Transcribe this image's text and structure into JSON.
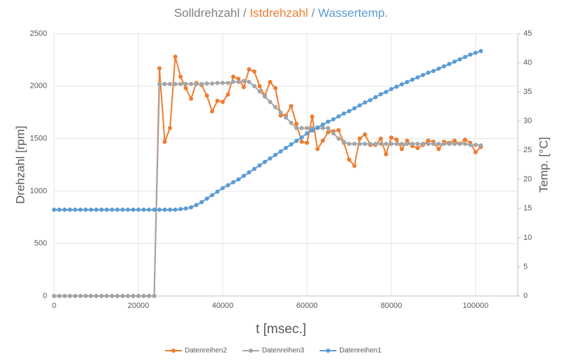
{
  "chart_data": {
    "type": "line",
    "title_parts": [
      {
        "text": "Solldrehzahl",
        "color": "#808080"
      },
      {
        "text": " / ",
        "color": "#808080"
      },
      {
        "text": "Istdrehzahl",
        "color": "#ED7D31"
      },
      {
        "text": " / ",
        "color": "#808080"
      },
      {
        "text": "Wassertemp.",
        "color": "#5B9BD5"
      }
    ],
    "xlabel": "t [msec.]",
    "ylabel": "Drehzahl [rpm]",
    "y2label": "Temp. [°C]",
    "xlim": [
      0,
      110000
    ],
    "xticks": [
      0,
      20000,
      40000,
      60000,
      80000,
      100000
    ],
    "ylim": [
      0,
      2500
    ],
    "yticks": [
      0,
      500,
      1000,
      1500,
      2000,
      2500
    ],
    "y2lim": [
      0,
      45
    ],
    "y2ticks": [
      0,
      5,
      10,
      15,
      20,
      25,
      30,
      35,
      40,
      45
    ],
    "grid": true,
    "legend": "bottom",
    "x": [
      0,
      1250,
      2500,
      3750,
      5000,
      6250,
      7500,
      8750,
      10000,
      11250,
      12500,
      13750,
      15000,
      16250,
      17500,
      18750,
      20000,
      21250,
      22500,
      23750,
      25000,
      26250,
      27500,
      28750,
      30000,
      31250,
      32500,
      33750,
      35000,
      36250,
      37500,
      38750,
      40000,
      41250,
      42500,
      43750,
      45000,
      46250,
      47500,
      48750,
      50000,
      51250,
      52500,
      53750,
      55000,
      56250,
      57500,
      58750,
      60000,
      61250,
      62500,
      63750,
      65000,
      66250,
      67500,
      68750,
      70000,
      71250,
      72500,
      73750,
      75000,
      76250,
      77500,
      78750,
      80000,
      81250,
      82500,
      83750,
      85000,
      86250,
      87500,
      88750,
      90000,
      91250,
      92500,
      93750,
      95000,
      96250,
      97500,
      98750,
      100000,
      101250
    ],
    "series": [
      {
        "name": "Datenreihen2",
        "color": "#ED7D31",
        "values": [
          0,
          0,
          0,
          0,
          0,
          0,
          0,
          0,
          0,
          0,
          0,
          0,
          0,
          0,
          0,
          0,
          0,
          0,
          0,
          0,
          2170,
          1470,
          1600,
          2280,
          2090,
          1980,
          1880,
          2030,
          2010,
          1910,
          1760,
          1860,
          1850,
          1920,
          2090,
          2070,
          1990,
          2160,
          2140,
          2000,
          1910,
          2040,
          1980,
          1720,
          1720,
          1810,
          1640,
          1470,
          1460,
          1710,
          1400,
          1480,
          1560,
          1570,
          1580,
          1460,
          1300,
          1240,
          1500,
          1540,
          1440,
          1440,
          1500,
          1350,
          1510,
          1490,
          1400,
          1480,
          1430,
          1410,
          1440,
          1480,
          1470,
          1400,
          1470,
          1460,
          1480,
          1450,
          1490,
          1460,
          1370,
          1420
        ]
      },
      {
        "name": "Datenreihen3",
        "color": "#A5A5A5",
        "values": [
          0,
          0,
          0,
          0,
          0,
          0,
          0,
          0,
          0,
          0,
          0,
          0,
          0,
          0,
          0,
          0,
          0,
          0,
          0,
          0,
          2020,
          2020,
          2020,
          2020,
          2020,
          2020,
          2020,
          2020,
          2020,
          2025,
          2025,
          2030,
          2030,
          2030,
          2040,
          2040,
          2050,
          2040,
          2000,
          1950,
          1900,
          1850,
          1800,
          1750,
          1700,
          1650,
          1600,
          1600,
          1600,
          1600,
          1600,
          1600,
          1600,
          1550,
          1500,
          1470,
          1450,
          1450,
          1450,
          1450,
          1450,
          1450,
          1450,
          1450,
          1450,
          1450,
          1450,
          1450,
          1450,
          1450,
          1450,
          1450,
          1450,
          1450,
          1450,
          1450,
          1450,
          1450,
          1450,
          1440,
          1440,
          1435
        ]
      },
      {
        "name": "Datenreihen1",
        "color": "#5B9BD5",
        "axis": "y2",
        "values": [
          14.8,
          14.8,
          14.8,
          14.8,
          14.8,
          14.8,
          14.8,
          14.8,
          14.8,
          14.8,
          14.8,
          14.8,
          14.8,
          14.8,
          14.8,
          14.8,
          14.8,
          14.8,
          14.8,
          14.8,
          14.8,
          14.8,
          14.8,
          14.8,
          14.9,
          15.0,
          15.2,
          15.6,
          16.1,
          16.7,
          17.3,
          17.9,
          18.5,
          19.0,
          19.5,
          20.0,
          20.6,
          21.2,
          21.8,
          22.4,
          23.0,
          23.6,
          24.2,
          24.8,
          25.4,
          26.0,
          26.6,
          27.2,
          27.9,
          28.4,
          28.9,
          29.4,
          29.9,
          30.3,
          30.8,
          31.3,
          31.7,
          32.2,
          32.7,
          33.2,
          33.6,
          34.1,
          34.6,
          35.0,
          35.5,
          35.9,
          36.3,
          36.7,
          37.1,
          37.5,
          37.9,
          38.3,
          38.6,
          39.0,
          39.4,
          39.8,
          40.2,
          40.6,
          41.0,
          41.4,
          41.7,
          42.0
        ]
      }
    ]
  }
}
